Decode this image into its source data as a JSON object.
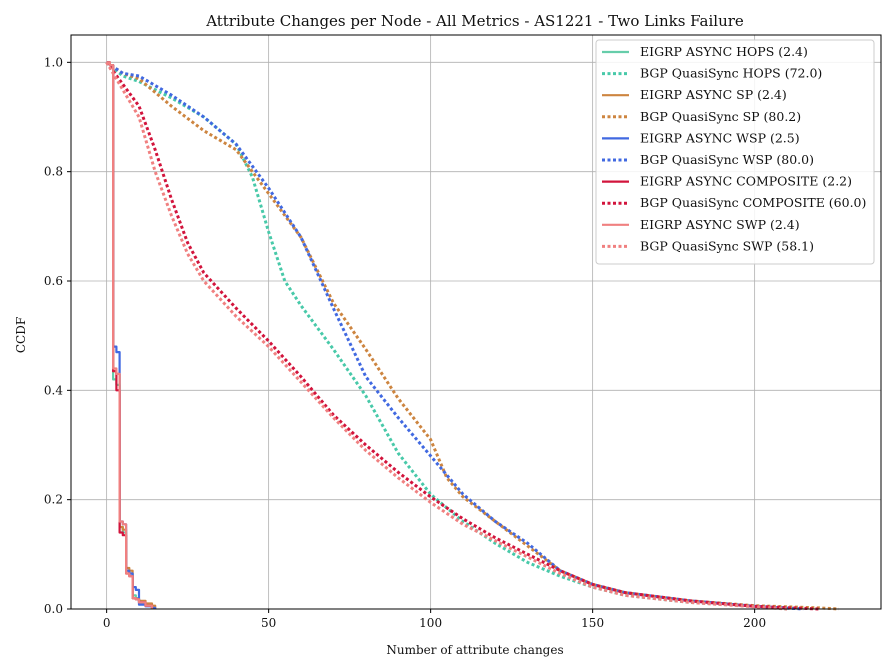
{
  "chart_data": {
    "type": "line",
    "title": "Attribute Changes per Node - All Metrics - AS1221 - Two Links Failure",
    "xlabel": "Number of attribute changes",
    "ylabel": "CCDF",
    "xlim": [
      -11,
      239
    ],
    "ylim": [
      0,
      1.05
    ],
    "xticks": [
      0,
      50,
      100,
      150,
      200
    ],
    "yticks": [
      0.0,
      0.2,
      0.4,
      0.6,
      0.8,
      1.0
    ],
    "xtick_labels": [
      "0",
      "50",
      "100",
      "150",
      "200"
    ],
    "ytick_labels": [
      "0.0",
      "0.2",
      "0.4",
      "0.6",
      "0.8",
      "1.0"
    ],
    "grid": true,
    "legend_position": "top-right",
    "series": [
      {
        "name": "EIGRP ASYNC HOPS (2.4)",
        "color": "#66cdaa",
        "style": "solid",
        "x": [
          0,
          1,
          2,
          3,
          4,
          5,
          6,
          7,
          8,
          9,
          10,
          12,
          14
        ],
        "y": [
          1.0,
          0.995,
          0.42,
          0.41,
          0.15,
          0.14,
          0.07,
          0.065,
          0.025,
          0.02,
          0.012,
          0.006,
          0.0
        ]
      },
      {
        "name": "BGP QuasiSync HOPS (72.0)",
        "color": "#48c9a9",
        "style": "dotted",
        "x": [
          0,
          5,
          10,
          20,
          30,
          40,
          45,
          50,
          55,
          60,
          70,
          80,
          90,
          100,
          110,
          120,
          130,
          140,
          150,
          160,
          180,
          200,
          210
        ],
        "y": [
          1.0,
          0.975,
          0.965,
          0.935,
          0.9,
          0.85,
          0.79,
          0.69,
          0.6,
          0.555,
          0.475,
          0.39,
          0.285,
          0.21,
          0.16,
          0.12,
          0.085,
          0.06,
          0.04,
          0.025,
          0.012,
          0.005,
          0.0
        ]
      },
      {
        "name": "EIGRP ASYNC SP (2.4)",
        "color": "#cd8540",
        "style": "solid",
        "x": [
          0,
          1,
          2,
          3,
          4,
          5,
          6,
          7,
          8,
          9,
          10,
          12,
          14,
          15
        ],
        "y": [
          1.0,
          0.995,
          0.435,
          0.43,
          0.15,
          0.145,
          0.075,
          0.07,
          0.02,
          0.018,
          0.015,
          0.01,
          0.006,
          0.0
        ]
      },
      {
        "name": "BGP QuasiSync SP (80.2)",
        "color": "#cd8540",
        "style": "dotted",
        "x": [
          0,
          5,
          10,
          20,
          30,
          40,
          50,
          60,
          70,
          80,
          90,
          100,
          105,
          110,
          120,
          130,
          140,
          150,
          160,
          180,
          200,
          220,
          226
        ],
        "y": [
          1.0,
          0.98,
          0.97,
          0.92,
          0.875,
          0.84,
          0.76,
          0.68,
          0.56,
          0.475,
          0.385,
          0.31,
          0.24,
          0.205,
          0.16,
          0.115,
          0.07,
          0.045,
          0.03,
          0.015,
          0.006,
          0.002,
          0.0
        ]
      },
      {
        "name": "EIGRP ASYNC WSP (2.5)",
        "color": "#4169e1",
        "style": "solid",
        "x": [
          0,
          1,
          2,
          3,
          4,
          5,
          6,
          7,
          8,
          9,
          10,
          12,
          14,
          15
        ],
        "y": [
          1.0,
          0.995,
          0.48,
          0.47,
          0.16,
          0.155,
          0.07,
          0.065,
          0.04,
          0.035,
          0.008,
          0.005,
          0.002,
          0.0
        ]
      },
      {
        "name": "BGP QuasiSync WSP (80.0)",
        "color": "#4169e1",
        "style": "dotted",
        "x": [
          0,
          5,
          10,
          20,
          30,
          40,
          50,
          60,
          70,
          80,
          90,
          100,
          110,
          120,
          130,
          140,
          150,
          160,
          180,
          200,
          215
        ],
        "y": [
          1.0,
          0.98,
          0.975,
          0.94,
          0.9,
          0.85,
          0.77,
          0.68,
          0.55,
          0.425,
          0.35,
          0.28,
          0.21,
          0.16,
          0.12,
          0.07,
          0.045,
          0.03,
          0.015,
          0.005,
          0.0
        ]
      },
      {
        "name": "EIGRP ASYNC COMPOSITE (2.2)",
        "color": "#d2143c",
        "style": "solid",
        "x": [
          0,
          1,
          2,
          3,
          4,
          5,
          6,
          7,
          8,
          9,
          10,
          12,
          14
        ],
        "y": [
          1.0,
          0.995,
          0.435,
          0.4,
          0.14,
          0.135,
          0.065,
          0.06,
          0.02,
          0.018,
          0.012,
          0.006,
          0.0
        ]
      },
      {
        "name": "BGP QuasiSync COMPOSITE (60.0)",
        "color": "#d2143c",
        "style": "dotted",
        "x": [
          0,
          5,
          10,
          15,
          20,
          25,
          30,
          40,
          50,
          60,
          70,
          80,
          90,
          100,
          110,
          120,
          130,
          140,
          150,
          160,
          180,
          200,
          220
        ],
        "y": [
          1.0,
          0.96,
          0.92,
          0.84,
          0.75,
          0.67,
          0.615,
          0.55,
          0.49,
          0.425,
          0.355,
          0.3,
          0.25,
          0.205,
          0.165,
          0.13,
          0.1,
          0.07,
          0.045,
          0.03,
          0.015,
          0.005,
          0.0
        ]
      },
      {
        "name": "EIGRP ASYNC SWP (2.4)",
        "color": "#f08080",
        "style": "solid",
        "x": [
          0,
          1,
          2,
          3,
          4,
          5,
          6,
          7,
          8,
          9,
          10,
          12,
          14
        ],
        "y": [
          1.0,
          0.995,
          0.44,
          0.43,
          0.16,
          0.155,
          0.065,
          0.06,
          0.02,
          0.018,
          0.012,
          0.006,
          0.0
        ]
      },
      {
        "name": "BGP QuasiSync SWP (58.1)",
        "color": "#f08080",
        "style": "dotted",
        "x": [
          0,
          5,
          10,
          15,
          20,
          25,
          30,
          40,
          50,
          60,
          70,
          80,
          90,
          100,
          110,
          120,
          130,
          140,
          150,
          160,
          180,
          200,
          210
        ],
        "y": [
          1.0,
          0.95,
          0.9,
          0.8,
          0.72,
          0.65,
          0.6,
          0.535,
          0.48,
          0.415,
          0.35,
          0.29,
          0.24,
          0.195,
          0.155,
          0.125,
          0.095,
          0.065,
          0.04,
          0.025,
          0.012,
          0.004,
          0.0
        ]
      }
    ]
  }
}
